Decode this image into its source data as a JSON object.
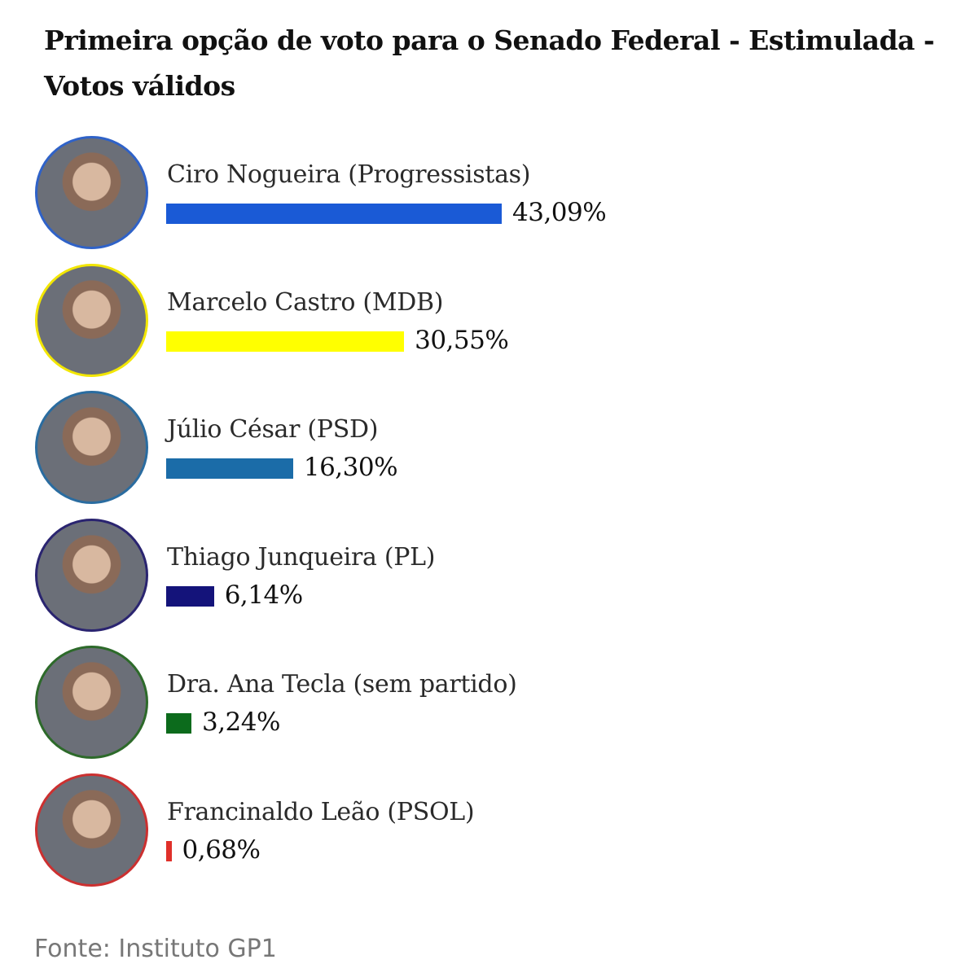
{
  "chart_data": {
    "type": "bar",
    "orientation": "horizontal",
    "title": "Primeira opção de voto para o Senado Federal - Estimulada - Votos válidos",
    "categories": [
      "Ciro Nogueira (Progressistas)",
      "Marcelo Castro (MDB)",
      "Júlio César (PSD)",
      "Thiago Junqueira (PL)",
      "Dra. Ana Tecla (sem partido)",
      "Francinaldo Leão (PSOL)"
    ],
    "values": [
      43.09,
      30.55,
      16.3,
      6.14,
      3.24,
      0.68
    ],
    "value_labels": [
      "43,09%",
      "30,55%",
      "16,30%",
      "6,14%",
      "3,24%",
      "0,68%"
    ],
    "colors": [
      "#1a5ad6",
      "#ffff00",
      "#1b6ca8",
      "#14137a",
      "#0c6b1c",
      "#e0302a"
    ],
    "avatar_border_colors": [
      "#2f62c8",
      "#f2e600",
      "#2a6ca0",
      "#2a2470",
      "#2d6a2a",
      "#cc3030"
    ],
    "source": "Fonte: Instituto GP1",
    "grid": false,
    "legend": "none"
  }
}
